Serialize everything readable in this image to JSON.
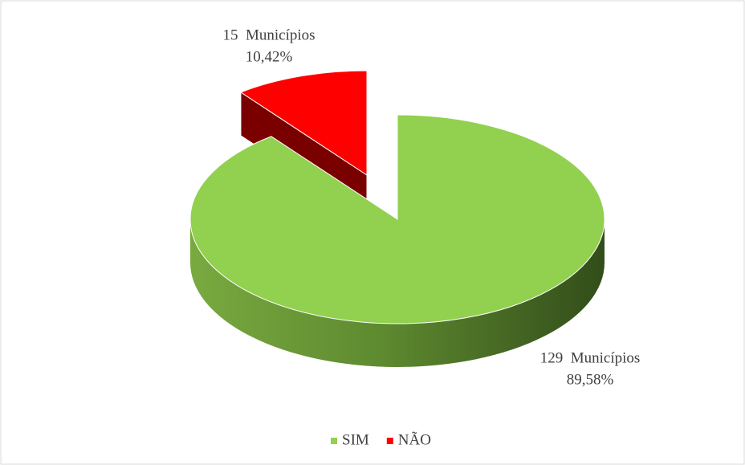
{
  "chart_data": {
    "type": "pie3d",
    "categories": [
      "SIM",
      "NÃO"
    ],
    "values": [
      129,
      15
    ],
    "value_labels": [
      "129  Municípios",
      "15  Municípios"
    ],
    "percentages": [
      89.58,
      10.42
    ],
    "percentage_labels": [
      "89,58%",
      "10,42%"
    ],
    "colors": [
      "#92d050",
      "#ff0000"
    ],
    "exploded": [
      false,
      true
    ],
    "legend": "bottom"
  }
}
